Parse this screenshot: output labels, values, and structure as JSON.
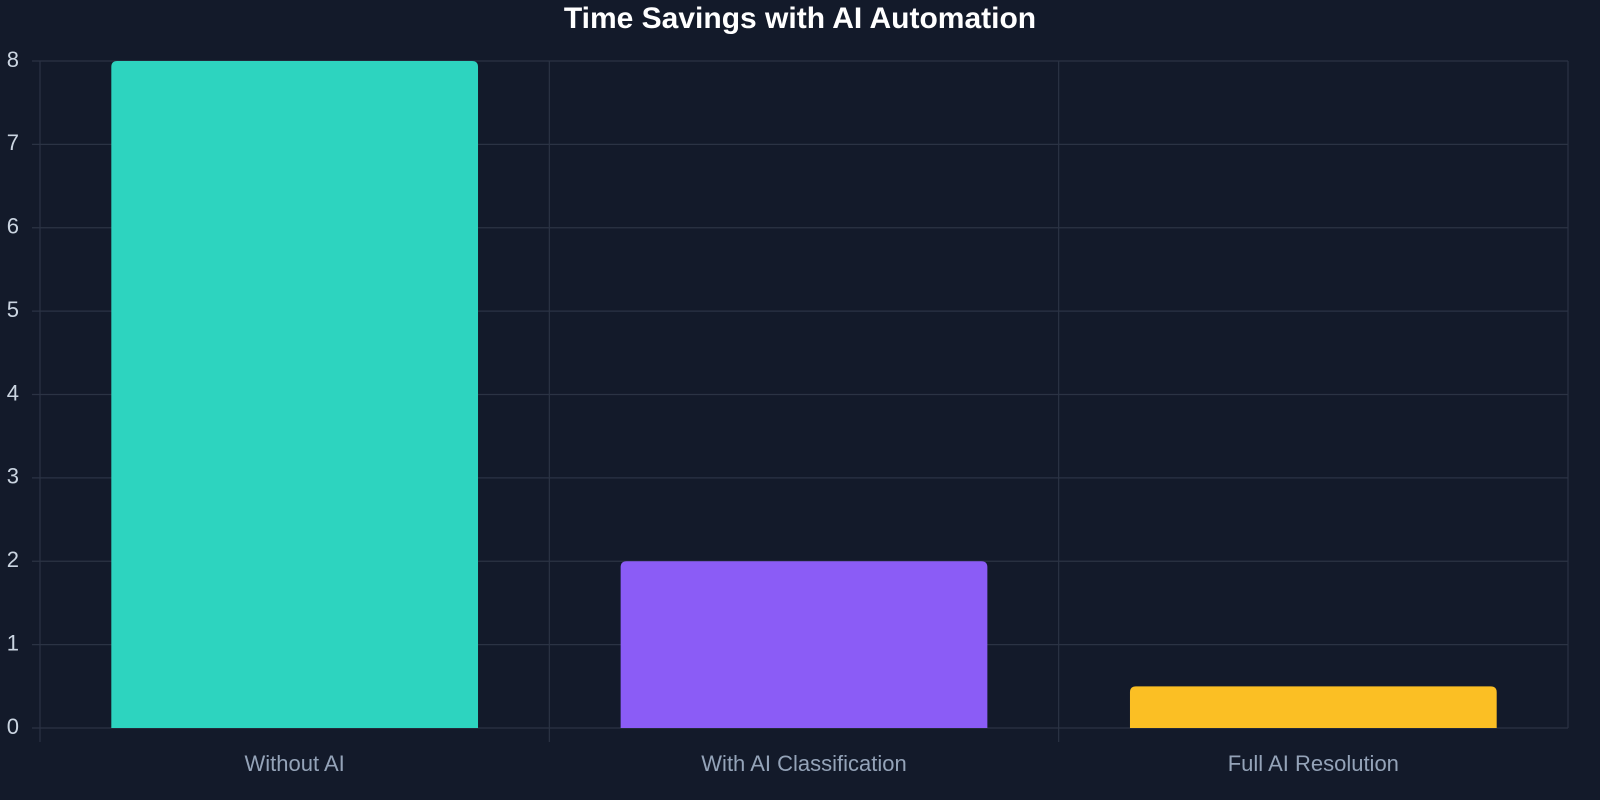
{
  "chart_data": {
    "type": "bar",
    "title": "Time Savings with AI Automation",
    "categories": [
      "Without AI",
      "With AI Classification",
      "Full AI Resolution"
    ],
    "values": [
      8,
      2,
      0.5
    ],
    "colors": [
      "#2dd4bf",
      "#8b5cf6",
      "#fbbf24"
    ],
    "ylim": [
      0,
      8
    ],
    "yticks": [
      0,
      1,
      2,
      3,
      4,
      5,
      6,
      7,
      8
    ],
    "grid": true
  }
}
